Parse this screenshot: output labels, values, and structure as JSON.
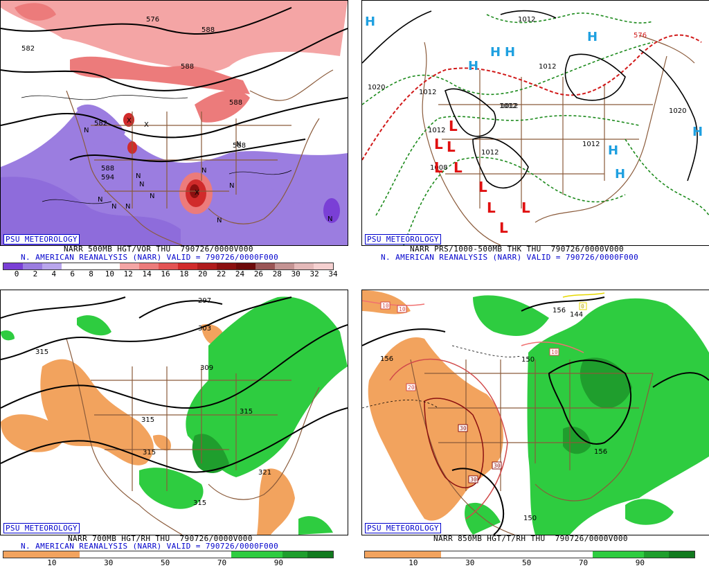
{
  "panels": {
    "p1": {
      "watermark": "PSU METEOROLOGY",
      "caption1": "NARR 500MB HGT/VOR THU  790726/0000V000",
      "caption2": "N. AMERICAN REANALYSIS (NARR) VALID = 790726/0000F000",
      "colorbar_colors": [
        "#7a3fd6",
        "#9b7de0",
        "#b9a6ec",
        "#ffffff",
        "#ffffff",
        "#ffffff",
        "#f4a5a5",
        "#ec7b7b",
        "#e35454",
        "#d12b2b",
        "#b01c1c",
        "#8b1010",
        "#6d0a0a",
        "#9a5555",
        "#c49393",
        "#e4b9b9",
        "#f5d0d0"
      ],
      "colorbar_ticks": [
        "0",
        "2",
        "4",
        "6",
        "8",
        "10",
        "12",
        "14",
        "16",
        "18",
        "20",
        "22",
        "24",
        "26",
        "28",
        "30",
        "32",
        "34"
      ],
      "contour_labels": [
        "582",
        "588",
        "576",
        "588",
        "582",
        "588",
        "594",
        "588",
        "588"
      ],
      "symbols": [
        "N",
        "N",
        "N",
        "N",
        "N",
        "N",
        "N",
        "N",
        "N",
        "N",
        "N",
        "N",
        "X",
        "X",
        "X"
      ]
    },
    "p2": {
      "watermark": "PSU METEOROLOGY",
      "caption1": "NARR PRS/1000-500MB THK THU  790726/0000V000",
      "caption2": "N. AMERICAN REANALYSIS (NARR) VALID = 790726/0000F000",
      "contour_labels": [
        "1012",
        "1012",
        "1020",
        "1012",
        "1012",
        "1020",
        "1012",
        "1012",
        "1008",
        "1012",
        "1012",
        "576"
      ],
      "high_labels": [
        "H",
        "H",
        "H",
        "H",
        "H",
        "H",
        "H",
        "H"
      ],
      "low_labels": [
        "L",
        "L",
        "L",
        "L",
        "L",
        "L",
        "L",
        "L",
        "L"
      ]
    },
    "p3": {
      "watermark": "PSU METEOROLOGY",
      "caption1": "NARR 700MB HGT/RH THU  790726/0000V000",
      "caption2": "N. AMERICAN REANALYSIS (NARR) VALID = 790726/0000F000",
      "colorbar_colors": [
        "#f2a35e",
        "#f2a35e",
        "#f2a35e",
        "#ffffff",
        "#ffffff",
        "#ffffff",
        "#ffffff",
        "#ffffff",
        "#ffffff",
        "#2ecc40",
        "#2ecc40",
        "#1f9e2d",
        "#127a1f"
      ],
      "colorbar_ticks": [
        "10",
        "30",
        "50",
        "70",
        "90"
      ],
      "contour_labels": [
        "297",
        "303",
        "309",
        "315",
        "315",
        "315",
        "315",
        "321",
        "315"
      ]
    },
    "p4": {
      "watermark": "PSU METEOROLOGY",
      "caption1": "NARR 850MB HGT/T/RH THU  790726/0000V000",
      "colorbar_colors": [
        "#f2a35e",
        "#f2a35e",
        "#f2a35e",
        "#ffffff",
        "#ffffff",
        "#ffffff",
        "#ffffff",
        "#ffffff",
        "#ffffff",
        "#2ecc40",
        "#2ecc40",
        "#1f9e2d",
        "#127a1f"
      ],
      "colorbar_ticks": [
        "10",
        "30",
        "50",
        "70",
        "90"
      ],
      "contour_labels": [
        "156",
        "150",
        "156",
        "156",
        "144",
        "150"
      ],
      "temp_labels": [
        "10",
        "10",
        "10",
        "20",
        "30",
        "30",
        "30",
        "0"
      ]
    }
  }
}
